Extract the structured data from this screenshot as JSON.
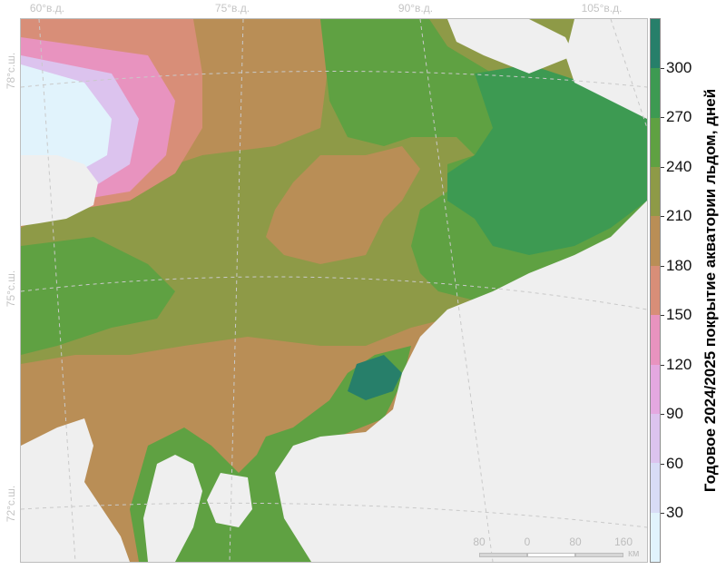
{
  "map": {
    "lon_labels": [
      "60°в.д.",
      "75°в.д.",
      "90°в.д.",
      "105°в.д."
    ],
    "lat_labels": [
      "78°с.ш.",
      "75°с.ш.",
      "72°с.ш."
    ],
    "colors": {
      "land": "#efefef",
      "ocean": "#ffffff",
      "graticule": "#c9c9c9"
    }
  },
  "colorbar": {
    "title": "Годовое 2024/2025 покрытие акватории льдом, дней",
    "ticks": [
      "30",
      "60",
      "90",
      "120",
      "150",
      "180",
      "210",
      "240",
      "270",
      "300"
    ],
    "min": 0,
    "max": 330,
    "colors": [
      "#e1f3fc",
      "#d8dcf6",
      "#dcc3ee",
      "#e4a8e0",
      "#e893bf",
      "#d88e78",
      "#b98e56",
      "#8e9a47",
      "#5fa142",
      "#3d9a52",
      "#277f6a"
    ]
  },
  "scalebar": {
    "labels": [
      "80",
      "0",
      "80",
      "160"
    ],
    "unit": "км"
  }
}
